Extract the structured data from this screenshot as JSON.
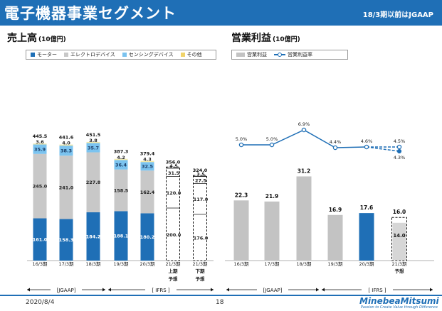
{
  "header": {
    "title": "電子機器事業セグメント",
    "gaap_note": "18/3期以前はJGAAP"
  },
  "footer": {
    "date": "2020/8/4",
    "page": "18",
    "logo_name": "MinebeaMitsumi",
    "logo_tagline": "Passion to Create Value through Difference"
  },
  "colors": {
    "header_blue": "#1f6fb6",
    "motor": "#1f6fb6",
    "electro": "#c8c8c8",
    "sensing": "#7bc3ef",
    "other": "#f3e8a8",
    "op_bar": "#c3c3c3",
    "op_bar_latest": "#1f6fb6",
    "line": "#1f6fb6"
  },
  "chart_data": [
    {
      "type": "bar",
      "stacked": true,
      "title": "売上高",
      "unit": "(10億円)",
      "categories": [
        "16/3期",
        "17/3期",
        "18/3期",
        "19/3期",
        "20/3期",
        "21/3期",
        "21/3期"
      ],
      "category_notes": [
        "",
        "",
        "",
        "",
        "",
        "上期予想",
        "下期予想"
      ],
      "note_lines": [
        [
          "上期",
          "予想"
        ],
        [
          "下期",
          "予想"
        ]
      ],
      "totals": [
        445.5,
        441.6,
        451.5,
        387.3,
        379.4,
        356.0,
        324.0
      ],
      "series": [
        {
          "name": "モーター",
          "values": [
            161.0,
            158.3,
            184.2,
            188.1,
            180.2,
            200.0,
            176.0
          ]
        },
        {
          "name": "エレクトロデバイス",
          "values": [
            245.0,
            241.0,
            227.8,
            158.5,
            162.4,
            120.0,
            117.0
          ]
        },
        {
          "name": "センシングデバイス",
          "values": [
            35.9,
            38.3,
            35.7,
            36.4,
            32.5,
            31.5,
            27.5
          ]
        },
        {
          "name": "その他",
          "values": [
            3.6,
            4.0,
            3.8,
            4.2,
            4.3,
            4.5,
            3.5
          ]
        }
      ],
      "forecast_categories": [
        5,
        6
      ],
      "ylim": [
        0,
        460
      ]
    },
    {
      "type": "bar+line",
      "title": "営業利益",
      "unit": "(10億円)",
      "categories": [
        "16/3期",
        "17/3期",
        "18/3期",
        "19/3期",
        "20/3期",
        "21/3期"
      ],
      "category_notes": [
        "",
        "",
        "",
        "",
        "",
        "予想"
      ],
      "bar_series": {
        "name": "営業利益",
        "values": [
          22.3,
          21.9,
          31.2,
          16.9,
          17.6,
          16.0
        ]
      },
      "forecast_low": 14.0,
      "line_series": {
        "name": "営業利益率",
        "values": [
          5.0,
          5.0,
          6.9,
          4.4,
          4.6,
          4.5
        ],
        "forecast_low": 4.3,
        "unit": "%"
      },
      "ylim": [
        0,
        40
      ]
    }
  ],
  "gaap_spans": {
    "left": [
      {
        "label": "[JGAAP]"
      },
      {
        "label": "[ IFRS ]"
      }
    ],
    "right": [
      {
        "label": "[JGAAP]"
      },
      {
        "label": "[ IFRS ]"
      }
    ]
  }
}
